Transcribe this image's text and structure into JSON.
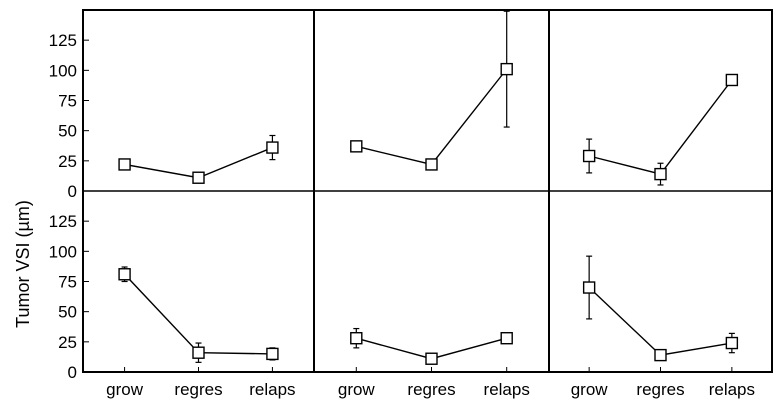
{
  "chart_data": {
    "type": "line",
    "layout": "2 rows x 3 columns, shared axes",
    "ylabel": "Tumor VSI (µm)",
    "ylim": [
      0,
      150
    ],
    "yticks": [
      0,
      25,
      50,
      75,
      100,
      125
    ],
    "categories": [
      "grow",
      "regres",
      "relaps"
    ],
    "grid": false,
    "marker": "open-square",
    "panels": [
      {
        "row": 1,
        "col": 1,
        "values": [
          22,
          11,
          36
        ],
        "errors": [
          2,
          2,
          10
        ]
      },
      {
        "row": 1,
        "col": 2,
        "values": [
          37,
          22,
          101
        ],
        "errors": [
          2,
          2,
          48
        ]
      },
      {
        "row": 1,
        "col": 3,
        "values": [
          29,
          14,
          92
        ],
        "errors": [
          14,
          9,
          2
        ]
      },
      {
        "row": 2,
        "col": 1,
        "values": [
          81,
          16,
          15
        ],
        "errors": [
          6,
          8,
          5
        ]
      },
      {
        "row": 2,
        "col": 2,
        "values": [
          28,
          11,
          28
        ],
        "errors": [
          8,
          4,
          2
        ]
      },
      {
        "row": 2,
        "col": 3,
        "values": [
          70,
          14,
          24
        ],
        "errors": [
          26,
          3,
          8
        ]
      }
    ]
  }
}
